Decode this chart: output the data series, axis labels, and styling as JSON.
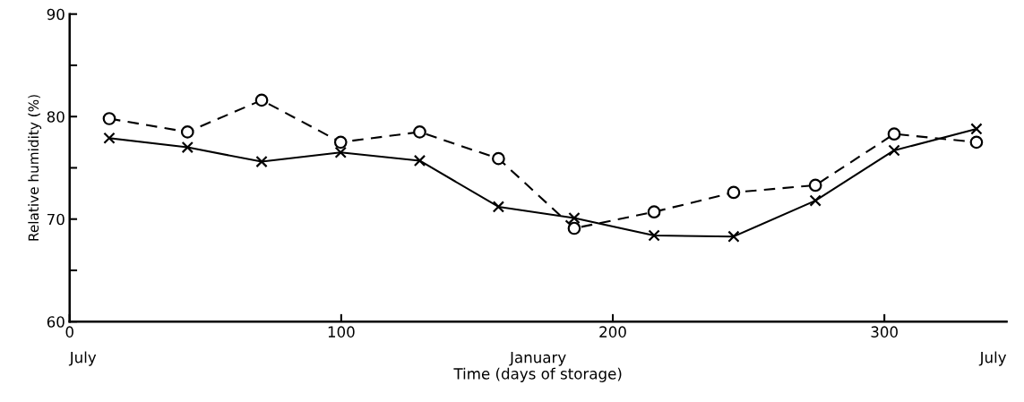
{
  "chart_data": {
    "type": "line",
    "xlabel": "Time (days of storage)",
    "ylabel": "Relative humidity (%)",
    "x": [
      14.6,
      43.4,
      70.7,
      99.8,
      128.9,
      157.9,
      185.8,
      215.2,
      244.5,
      274.6,
      303.6,
      333.9
    ],
    "series": [
      {
        "color": "#000000",
        "marker": "circle",
        "line_style": "dashed",
        "values": [
          79.8,
          78.5,
          81.6,
          77.5,
          78.5,
          75.9,
          69.1,
          70.7,
          72.6,
          73.3,
          78.3,
          77.5
        ]
      },
      {
        "color": "#000000",
        "marker": "cross",
        "line_style": "solid",
        "values": [
          77.9,
          77.0,
          75.6,
          76.5,
          75.7,
          71.2,
          70.1,
          68.4,
          68.3,
          71.8,
          76.7,
          78.8
        ]
      }
    ],
    "xlim": [
      0,
      345
    ],
    "xticks": [
      0,
      100,
      200,
      300
    ],
    "ylim": [
      60,
      90
    ],
    "yticks": [
      60,
      {
        "value": 65,
        "label": null
      },
      70,
      {
        "value": 75,
        "label": null
      },
      80,
      {
        "value": 85,
        "label": null
      },
      90
    ],
    "annotations": [
      "July",
      "January",
      "July"
    ],
    "grid": false,
    "legend": false
  }
}
